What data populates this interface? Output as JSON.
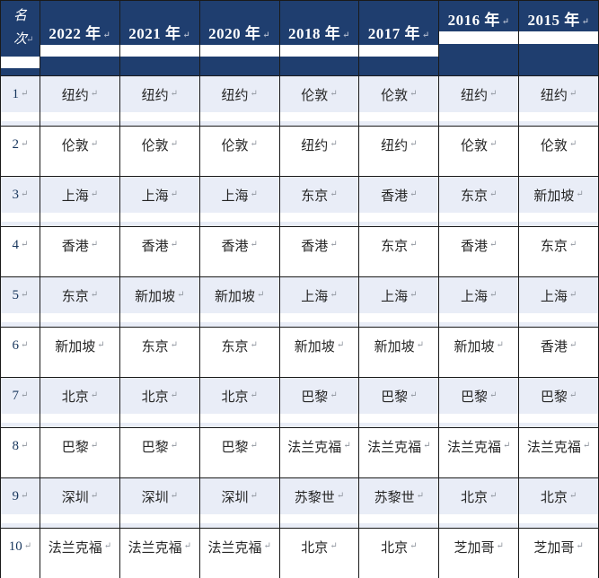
{
  "table": {
    "header": {
      "rank_label": "名次",
      "years": [
        "2022 年",
        "2021 年",
        "2020 年",
        "2018 年",
        "2017 年",
        "2016 年",
        "2015 年"
      ]
    },
    "rows": [
      {
        "rank": "1",
        "cells": [
          "纽约",
          "纽约",
          "纽约",
          "伦敦",
          "伦敦",
          "纽约",
          "纽约"
        ]
      },
      {
        "rank": "2",
        "cells": [
          "伦敦",
          "伦敦",
          "伦敦",
          "纽约",
          "纽约",
          "伦敦",
          "伦敦"
        ]
      },
      {
        "rank": "3",
        "cells": [
          "上海",
          "上海",
          "上海",
          "东京",
          "香港",
          "东京",
          "新加坡"
        ]
      },
      {
        "rank": "4",
        "cells": [
          "香港",
          "香港",
          "香港",
          "香港",
          "东京",
          "香港",
          "东京"
        ]
      },
      {
        "rank": "5",
        "cells": [
          "东京",
          "新加坡",
          "新加坡",
          "上海",
          "上海",
          "上海",
          "上海"
        ]
      },
      {
        "rank": "6",
        "cells": [
          "新加坡",
          "东京",
          "东京",
          "新加坡",
          "新加坡",
          "新加坡",
          "香港"
        ]
      },
      {
        "rank": "7",
        "cells": [
          "北京",
          "北京",
          "北京",
          "巴黎",
          "巴黎",
          "巴黎",
          "巴黎"
        ]
      },
      {
        "rank": "8",
        "cells": [
          "巴黎",
          "巴黎",
          "巴黎",
          "法兰克福",
          "法兰克福",
          "法兰克福",
          "法兰克福"
        ]
      },
      {
        "rank": "9",
        "cells": [
          "深圳",
          "深圳",
          "深圳",
          "苏黎世",
          "苏黎世",
          "北京",
          "北京"
        ]
      },
      {
        "rank": "10",
        "cells": [
          "法兰克福",
          "法兰克福",
          "法兰克福",
          "北京",
          "北京",
          "芝加哥",
          "芝加哥"
        ]
      }
    ],
    "pilcrow": "↵",
    "colors": {
      "header_bg": "#1F3E6F",
      "row_tint": "#E9EDF7",
      "border": "#1A1A1A",
      "header_text": "#FFFFFF",
      "cell_text": "#262626",
      "rank_text": "#17365D",
      "paragraph_mark": "#8F959E"
    }
  }
}
